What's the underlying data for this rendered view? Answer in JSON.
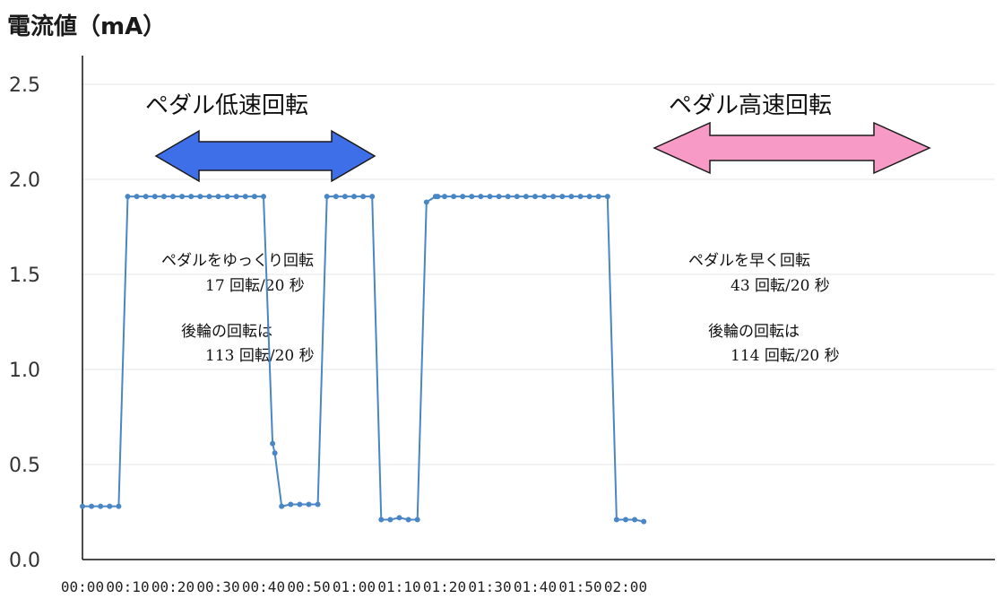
{
  "chart_data": {
    "type": "line",
    "ylabel": "電流値（mA）",
    "xlabel": "",
    "ylim": [
      0,
      2.5
    ],
    "xlim_seconds": [
      0,
      125
    ],
    "y_ticks": [
      {
        "value": 0.0,
        "label": "0.0"
      },
      {
        "value": 0.5,
        "label": "0.5"
      },
      {
        "value": 1.0,
        "label": "1.0"
      },
      {
        "value": 1.5,
        "label": "1.5"
      },
      {
        "value": 2.0,
        "label": "2.0"
      },
      {
        "value": 2.5,
        "label": "2.5"
      }
    ],
    "x_ticks": [
      {
        "value": 0,
        "label": "00:00"
      },
      {
        "value": 10,
        "label": "00:10"
      },
      {
        "value": 20,
        "label": "00:20"
      },
      {
        "value": 30,
        "label": "00:30"
      },
      {
        "value": 40,
        "label": "00:40"
      },
      {
        "value": 50,
        "label": "00:50"
      },
      {
        "value": 60,
        "label": "01:00"
      },
      {
        "value": 70,
        "label": "01:10"
      },
      {
        "value": 80,
        "label": "01:20"
      },
      {
        "value": 90,
        "label": "01:30"
      },
      {
        "value": 100,
        "label": "01:40"
      },
      {
        "value": 110,
        "label": "01:50"
      },
      {
        "value": 120,
        "label": "02:00"
      }
    ],
    "grid": true,
    "series": [
      {
        "color": "#4a86c6",
        "x": [
          0,
          2,
          4,
          6,
          8,
          10,
          12,
          14,
          16,
          18,
          20,
          22,
          24,
          26,
          28,
          30,
          32,
          34,
          36,
          38,
          40,
          42,
          42.5,
          44,
          46,
          48,
          50,
          52,
          54,
          56,
          58,
          60,
          62,
          64,
          66,
          68,
          70,
          72,
          74,
          76,
          78,
          78.5,
          80,
          82,
          84,
          86,
          88,
          90,
          92,
          94,
          96,
          98,
          100,
          102,
          104,
          106,
          108,
          110,
          112,
          114,
          116,
          118,
          120,
          122,
          124
        ],
        "y": [
          0.28,
          0.28,
          0.28,
          0.28,
          0.28,
          1.91,
          1.91,
          1.91,
          1.91,
          1.91,
          1.91,
          1.91,
          1.91,
          1.91,
          1.91,
          1.91,
          1.91,
          1.91,
          1.91,
          1.91,
          1.91,
          0.61,
          0.56,
          0.28,
          0.29,
          0.29,
          0.29,
          0.29,
          1.91,
          1.91,
          1.91,
          1.91,
          1.91,
          1.91,
          0.21,
          0.21,
          0.22,
          0.21,
          0.21,
          1.88,
          1.91,
          1.91,
          1.91,
          1.91,
          1.91,
          1.91,
          1.91,
          1.91,
          1.91,
          1.91,
          1.91,
          1.91,
          1.91,
          1.91,
          1.91,
          1.91,
          1.91,
          1.91,
          1.91,
          1.91,
          1.91,
          0.21,
          0.21,
          0.21,
          0.2
        ]
      }
    ],
    "annotations": {
      "low_header": "ペダル低速回転",
      "high_header": "ペダル高速回転",
      "low_arrow_color": "#3f6fe8",
      "high_arrow_color": "#f79ac6",
      "low_note": [
        "ペダルをゆっくり回転",
        "17 回転/20 秒",
        "後輪の回転は",
        "113 回転/20 秒"
      ],
      "high_note": [
        "ペダルを早く回転",
        "43 回転/20 秒",
        "後輪の回転は",
        "114 回転/20 秒"
      ]
    }
  }
}
